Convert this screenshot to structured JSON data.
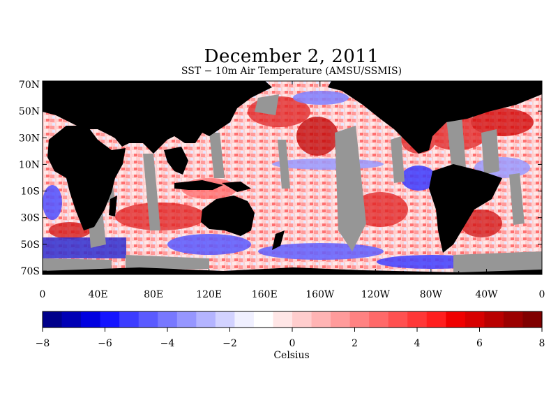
{
  "title": "December 2, 2011",
  "subtitle": "SST − 10m Air Temperature (AMSU/SSMIS)",
  "lat_labels": [
    "70N",
    "50N",
    "30N",
    "10N",
    "10S",
    "30S",
    "50S",
    "70S"
  ],
  "lon_labels": [
    "0",
    "40E",
    "80E",
    "120E",
    "160E",
    "160W",
    "120W",
    "80W",
    "40W",
    "0"
  ],
  "colorbar": {
    "unit": "Celsius",
    "range": [
      -8,
      8
    ],
    "tick_labels": [
      "−8",
      "−6",
      "−4",
      "−2",
      "0",
      "2",
      "4",
      "6",
      "8"
    ],
    "colors": [
      "#00008b",
      "#0000b5",
      "#0000e0",
      "#1414ff",
      "#3c3cff",
      "#5a5aff",
      "#7878ff",
      "#9696ff",
      "#b4b4ff",
      "#d2d2ff",
      "#f0f0ff",
      "#ffffff",
      "#ffe6e6",
      "#ffcdcd",
      "#ffb4b4",
      "#ff9b9b",
      "#ff8282",
      "#ff6969",
      "#ff5050",
      "#ff3737",
      "#ff1e1e",
      "#f00000",
      "#d70000",
      "#b90000",
      "#9b0000",
      "#800000"
    ]
  },
  "legend_colors": {
    "land": "#000000",
    "no_data": "#969696"
  }
}
